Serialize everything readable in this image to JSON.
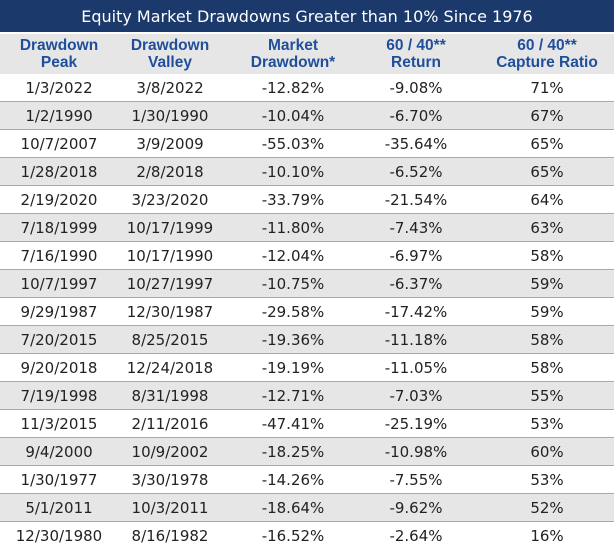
{
  "title": "Equity Market Drawdowns Greater than 10% Since 1976",
  "columns": [
    [
      "Drawdown",
      "Peak"
    ],
    [
      "Drawdown",
      "Valley"
    ],
    [
      "Market",
      "Drawdown*"
    ],
    [
      "60 / 40**",
      "Return"
    ],
    [
      "60 / 40**",
      "Capture Ratio"
    ]
  ],
  "chart_data": {
    "type": "table",
    "title": "Equity Market Drawdowns Greater than 10% Since 1976",
    "headers": [
      "Drawdown Peak",
      "Drawdown Valley",
      "Market Drawdown*",
      "60 / 40** Return",
      "60 / 40** Capture Ratio"
    ],
    "rows": [
      [
        "1/3/2022",
        "3/8/2022",
        "-12.82%",
        "-9.08%",
        "71%"
      ],
      [
        "1/2/1990",
        "1/30/1990",
        "-10.04%",
        "-6.70%",
        "67%"
      ],
      [
        "10/7/2007",
        "3/9/2009",
        "-55.03%",
        "-35.64%",
        "65%"
      ],
      [
        "1/28/2018",
        "2/8/2018",
        "-10.10%",
        "-6.52%",
        "65%"
      ],
      [
        "2/19/2020",
        "3/23/2020",
        "-33.79%",
        "-21.54%",
        "64%"
      ],
      [
        "7/18/1999",
        "10/17/1999",
        "-11.80%",
        "-7.43%",
        "63%"
      ],
      [
        "7/16/1990",
        "10/17/1990",
        "-12.04%",
        "-6.97%",
        "58%"
      ],
      [
        "10/7/1997",
        "10/27/1997",
        "-10.75%",
        "-6.37%",
        "59%"
      ],
      [
        "9/29/1987",
        "12/30/1987",
        "-29.58%",
        "-17.42%",
        "59%"
      ],
      [
        "7/20/2015",
        "8/25/2015",
        "-19.36%",
        "-11.18%",
        "58%"
      ],
      [
        "9/20/2018",
        "12/24/2018",
        "-19.19%",
        "-11.05%",
        "58%"
      ],
      [
        "7/19/1998",
        "8/31/1998",
        "-12.71%",
        "-7.03%",
        "55%"
      ],
      [
        "11/3/2015",
        "2/11/2016",
        "-47.41%",
        "-25.19%",
        "53%"
      ],
      [
        "9/4/2000",
        "10/9/2002",
        "-18.25%",
        "-10.98%",
        "60%"
      ],
      [
        "1/30/1977",
        "3/30/1978",
        "-14.26%",
        "-7.55%",
        "53%"
      ],
      [
        "5/1/2011",
        "10/3/2011",
        "-18.64%",
        "-9.62%",
        "52%"
      ],
      [
        "12/30/1980",
        "8/16/1982",
        "-16.52%",
        "-2.64%",
        "16%"
      ]
    ]
  },
  "colors": {
    "title_bg": "#1b3a6b",
    "title_text": "#ffffff",
    "header_text": "#1f4f9a",
    "band": "#e6e6e6",
    "rule": "#a9a9a9",
    "cell_text": "#222222"
  }
}
